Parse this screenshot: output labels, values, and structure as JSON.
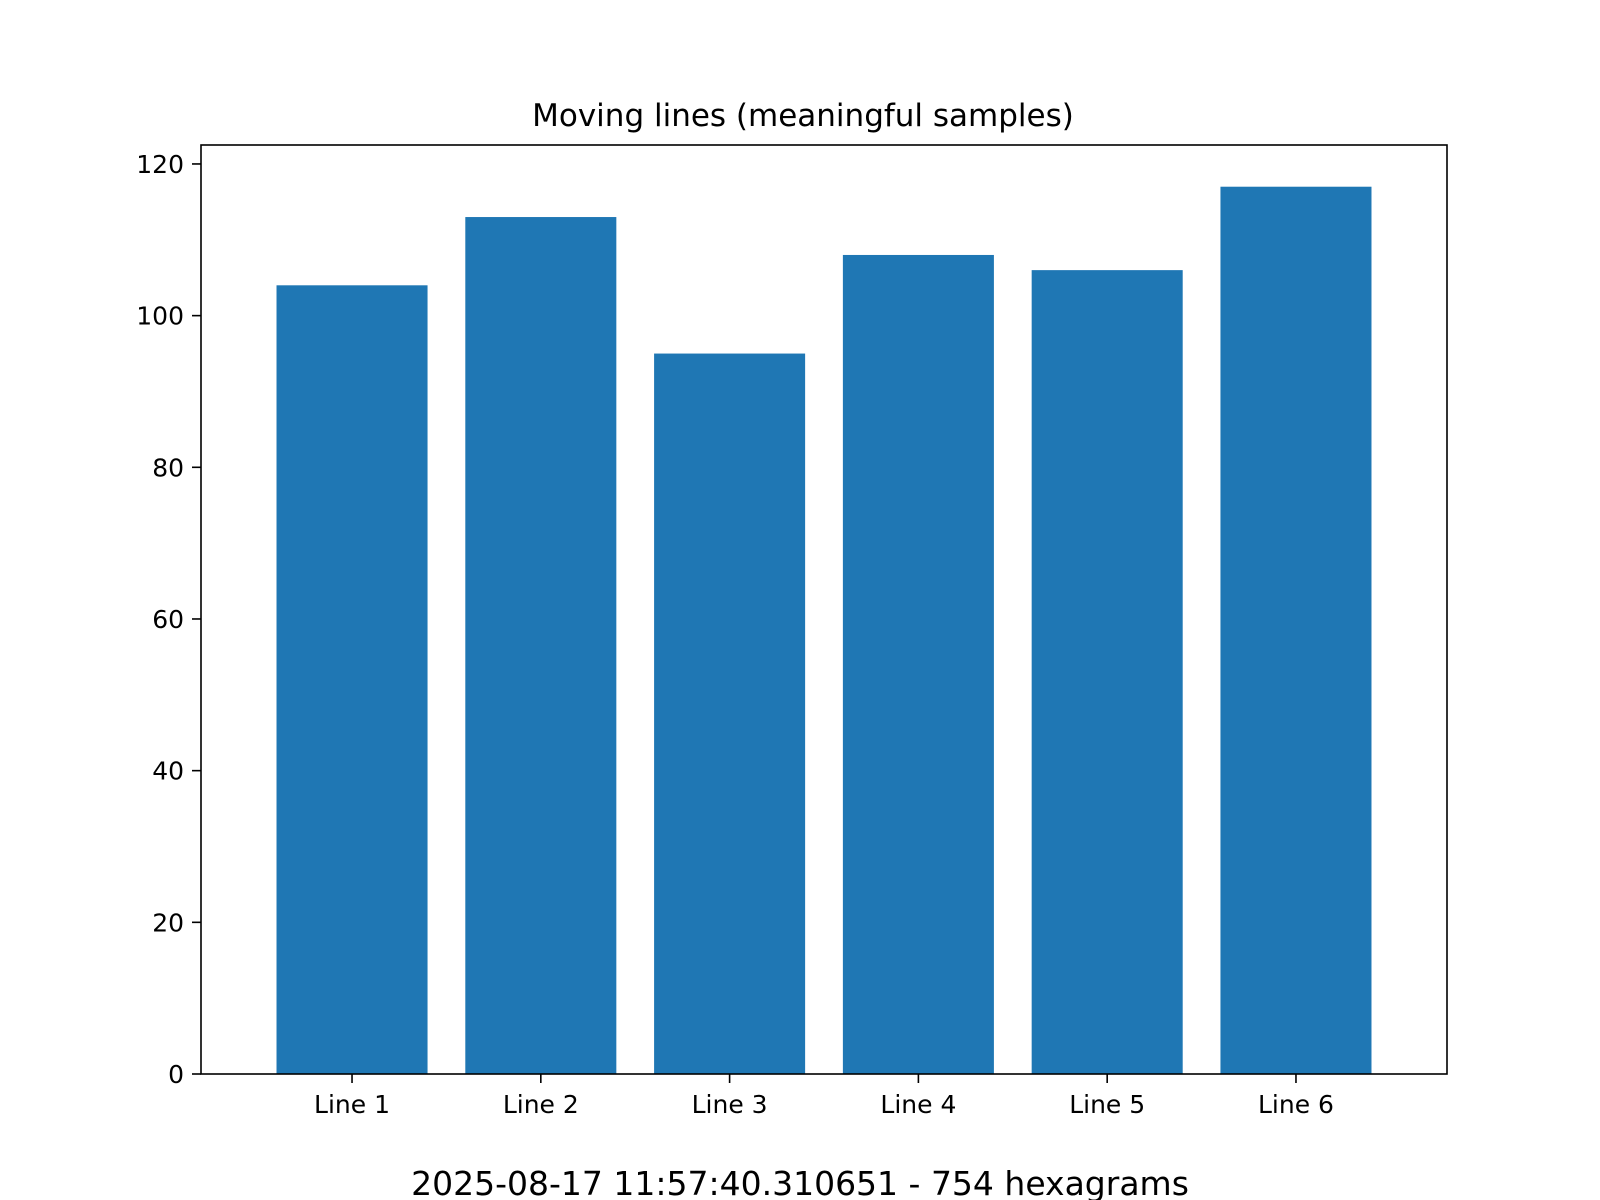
{
  "chart_data": {
    "type": "bar",
    "title": "Moving lines (meaningful samples)",
    "caption": "2025-08-17 11:57:40.310651 - 754 hexagrams",
    "categories": [
      "Line 1",
      "Line 2",
      "Line 3",
      "Line 4",
      "Line 5",
      "Line 6"
    ],
    "values": [
      104,
      113,
      95,
      108,
      106,
      117
    ],
    "xlabel": "",
    "ylabel": "",
    "ylim": [
      0,
      120
    ],
    "yticks": [
      0,
      20,
      40,
      60,
      80,
      100,
      120
    ],
    "grid": false,
    "legend": "none",
    "bar_color": "#1f77b4"
  }
}
